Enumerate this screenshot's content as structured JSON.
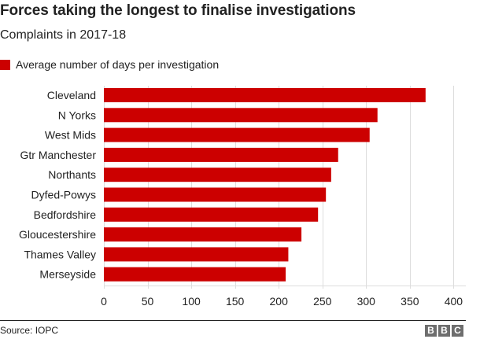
{
  "header": {
    "title": "Forces taking the longest to finalise investigations",
    "subtitle": "Complaints in 2017-18"
  },
  "legend": {
    "label": "Average number of days per investigation",
    "color": "#cc0000"
  },
  "footer": {
    "source": "Source: IOPC",
    "logo": [
      "B",
      "B",
      "C"
    ]
  },
  "colors": {
    "bar": "#cc0000",
    "grid": "#dddddd",
    "text": "#222222",
    "logo_bg": "#6e6e6e"
  },
  "chart_data": {
    "type": "bar",
    "orientation": "horizontal",
    "title": "Forces taking the longest to finalise investigations",
    "subtitle": "Complaints in 2017-18",
    "xlabel": "",
    "ylabel": "",
    "categories": [
      "Cleveland",
      "N Yorks",
      "West Mids",
      "Gtr Manchester",
      "Northants",
      "Dyfed-Powys",
      "Bedfordshire",
      "Gloucestershire",
      "Thames Valley",
      "Merseyside"
    ],
    "series": [
      {
        "name": "Average number of days per investigation",
        "color": "#cc0000",
        "values": [
          368,
          313,
          304,
          268,
          260,
          254,
          245,
          226,
          211,
          208
        ]
      }
    ],
    "xlim": [
      0,
      415
    ],
    "xticks": [
      0,
      50,
      100,
      150,
      200,
      250,
      300,
      350,
      400
    ],
    "grid": true,
    "legend_position": "top-left",
    "source": "Source: IOPC"
  }
}
